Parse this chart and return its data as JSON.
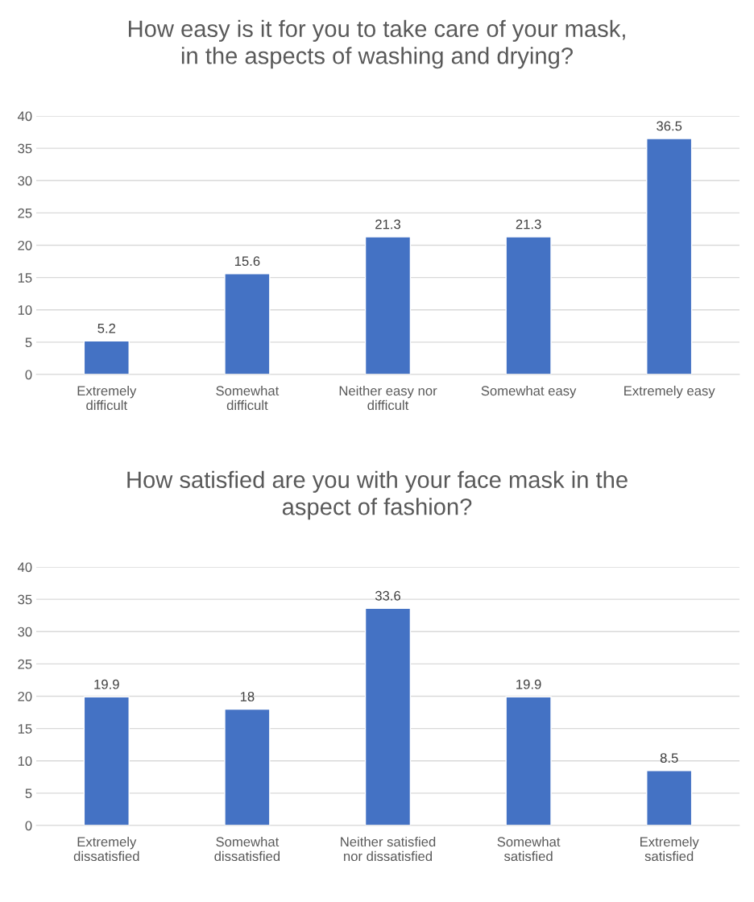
{
  "chart_data": [
    {
      "type": "bar",
      "title": "How easy is it for you to take care of your mask,\nin the aspects of washing and drying?",
      "categories": [
        "Extremely\ndifficult",
        "Somewhat\ndifficult",
        "Neither easy nor\ndifficult",
        "Somewhat easy",
        "Extremely easy"
      ],
      "values": [
        5.2,
        15.6,
        21.3,
        21.3,
        36.5
      ],
      "color": "#4472c4",
      "ylim": [
        0,
        40
      ],
      "yticks": [
        0,
        5,
        10,
        15,
        20,
        25,
        30,
        35,
        40
      ],
      "grid": "y",
      "data_labels": true
    },
    {
      "type": "bar",
      "title": "How satisfied are you with your face mask in the\naspect of fashion?",
      "categories": [
        "Extremely\ndissatisfied",
        "Somewhat\ndissatisfied",
        "Neither satisfied\nnor dissatisfied",
        "Somewhat\nsatisfied",
        "Extremely\nsatisfied"
      ],
      "values": [
        19.9,
        18,
        33.6,
        19.9,
        8.5
      ],
      "color": "#4472c4",
      "ylim": [
        0,
        40
      ],
      "yticks": [
        0,
        5,
        10,
        15,
        20,
        25,
        30,
        35,
        40
      ],
      "grid": "y",
      "data_labels": true
    }
  ]
}
